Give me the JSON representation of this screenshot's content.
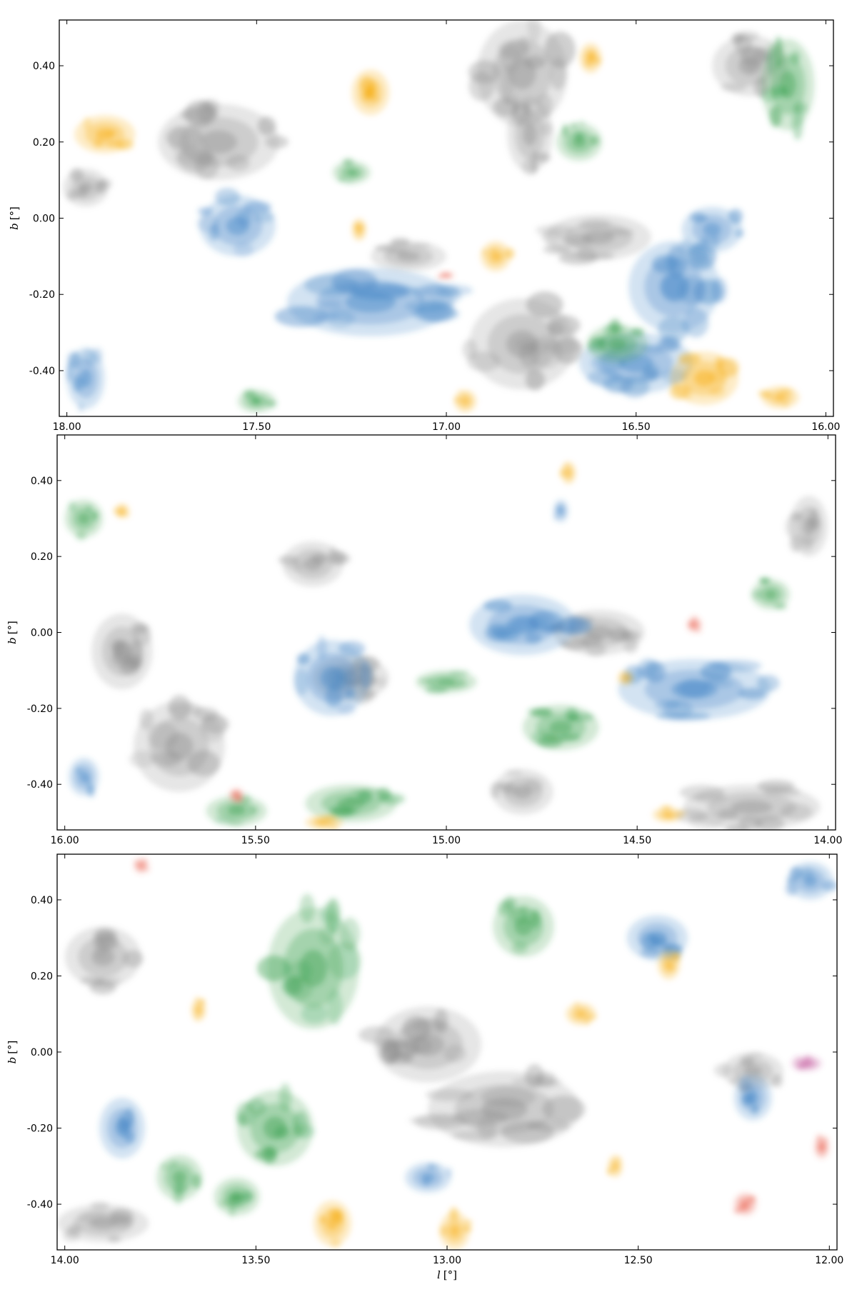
{
  "chart_data": [
    {
      "type": "heatmap",
      "panel": "top",
      "xlabel": "",
      "ylabel_var": "b",
      "ylabel_unit": "[°]",
      "xlim": [
        18.02,
        15.98
      ],
      "ylim": [
        -0.52,
        0.52
      ],
      "x_ticks": [
        18.0,
        17.5,
        17.0,
        16.5,
        16.0
      ],
      "x_tick_labels": [
        "18.00",
        "17.50",
        "17.00",
        "16.50",
        "16.00"
      ],
      "y_ticks": [
        0.4,
        0.2,
        0.0,
        -0.2,
        -0.4
      ],
      "y_tick_labels": [
        "0.40",
        "0.20",
        "0.00",
        "-0.20",
        "-0.40"
      ],
      "color_groups": [
        {
          "color": "#8c8c8c",
          "blobs": [
            [
              17.6,
              0.2,
              0.16,
              0.1
            ],
            [
              16.8,
              0.38,
              0.12,
              0.14
            ],
            [
              16.78,
              0.22,
              0.06,
              0.1
            ],
            [
              16.6,
              -0.05,
              0.14,
              0.06
            ],
            [
              16.8,
              -0.33,
              0.14,
              0.12
            ],
            [
              17.95,
              0.08,
              0.06,
              0.05
            ],
            [
              16.2,
              0.4,
              0.1,
              0.08
            ],
            [
              17.1,
              -0.1,
              0.1,
              0.04
            ]
          ]
        },
        {
          "color": "#3a7fc2",
          "blobs": [
            [
              17.2,
              -0.22,
              0.22,
              0.09
            ],
            [
              16.4,
              -0.18,
              0.12,
              0.12
            ],
            [
              16.5,
              -0.38,
              0.15,
              0.08
            ],
            [
              17.95,
              -0.42,
              0.05,
              0.08
            ],
            [
              17.55,
              -0.02,
              0.1,
              0.08
            ],
            [
              16.3,
              -0.03,
              0.08,
              0.06
            ]
          ]
        },
        {
          "color": "#2e9a45",
          "blobs": [
            [
              16.65,
              0.2,
              0.06,
              0.05
            ],
            [
              16.1,
              0.35,
              0.07,
              0.12
            ],
            [
              17.25,
              0.12,
              0.05,
              0.03
            ],
            [
              16.55,
              -0.33,
              0.08,
              0.05
            ],
            [
              17.5,
              -0.48,
              0.05,
              0.03
            ]
          ]
        },
        {
          "color": "#f5a800",
          "blobs": [
            [
              17.2,
              0.33,
              0.05,
              0.06
            ],
            [
              17.9,
              0.22,
              0.08,
              0.05
            ],
            [
              16.32,
              -0.42,
              0.09,
              0.07
            ],
            [
              16.12,
              -0.47,
              0.05,
              0.03
            ],
            [
              16.87,
              -0.1,
              0.04,
              0.04
            ],
            [
              16.95,
              -0.48,
              0.03,
              0.03
            ],
            [
              16.62,
              0.42,
              0.03,
              0.04
            ],
            [
              17.23,
              -0.03,
              0.02,
              0.03
            ]
          ]
        },
        {
          "color": "#e8523f",
          "blobs": [
            [
              17.0,
              -0.15,
              0.02,
              0.01
            ]
          ]
        }
      ]
    },
    {
      "type": "heatmap",
      "panel": "middle",
      "xlabel": "",
      "ylabel_var": "b",
      "ylabel_unit": "[°]",
      "xlim": [
        16.02,
        13.98
      ],
      "ylim": [
        -0.52,
        0.52
      ],
      "x_ticks": [
        16.0,
        15.5,
        15.0,
        14.5,
        14.0
      ],
      "x_tick_labels": [
        "16.00",
        "15.50",
        "15.00",
        "14.50",
        "14.00"
      ],
      "y_ticks": [
        0.4,
        0.2,
        0.0,
        -0.2,
        -0.4
      ],
      "y_tick_labels": [
        "0.40",
        "0.20",
        "0.00",
        "-0.20",
        "-0.40"
      ],
      "color_groups": [
        {
          "color": "#8c8c8c",
          "blobs": [
            [
              15.7,
              -0.3,
              0.12,
              0.12
            ],
            [
              15.85,
              -0.05,
              0.08,
              0.1
            ],
            [
              15.35,
              0.18,
              0.08,
              0.06
            ],
            [
              15.25,
              -0.12,
              0.1,
              0.06
            ],
            [
              14.6,
              0.0,
              0.12,
              0.06
            ],
            [
              14.2,
              -0.46,
              0.18,
              0.06
            ],
            [
              14.8,
              -0.42,
              0.08,
              0.06
            ],
            [
              14.05,
              0.28,
              0.05,
              0.08
            ]
          ]
        },
        {
          "color": "#3a7fc2",
          "blobs": [
            [
              14.8,
              0.02,
              0.14,
              0.08
            ],
            [
              14.35,
              -0.15,
              0.2,
              0.08
            ],
            [
              15.3,
              -0.12,
              0.1,
              0.1
            ],
            [
              15.95,
              -0.38,
              0.04,
              0.05
            ],
            [
              14.7,
              0.32,
              0.02,
              0.03
            ]
          ]
        },
        {
          "color": "#2e9a45",
          "blobs": [
            [
              15.25,
              -0.45,
              0.12,
              0.05
            ],
            [
              15.55,
              -0.47,
              0.08,
              0.04
            ],
            [
              14.15,
              0.1,
              0.05,
              0.04
            ],
            [
              15.0,
              -0.13,
              0.08,
              0.03
            ],
            [
              15.95,
              0.3,
              0.05,
              0.05
            ],
            [
              14.7,
              -0.25,
              0.1,
              0.06
            ]
          ]
        },
        {
          "color": "#f5a800",
          "blobs": [
            [
              15.85,
              0.32,
              0.02,
              0.02
            ],
            [
              15.32,
              -0.5,
              0.05,
              0.02
            ],
            [
              14.42,
              -0.48,
              0.04,
              0.02
            ],
            [
              14.68,
              0.42,
              0.02,
              0.03
            ],
            [
              14.53,
              -0.12,
              0.02,
              0.02
            ]
          ]
        },
        {
          "color": "#e8523f",
          "blobs": [
            [
              14.35,
              0.02,
              0.02,
              0.02
            ],
            [
              15.55,
              -0.43,
              0.02,
              0.02
            ]
          ]
        }
      ]
    },
    {
      "type": "heatmap",
      "panel": "bottom",
      "xlabel_var": "l",
      "xlabel_unit": "[°]",
      "ylabel_var": "b",
      "ylabel_unit": "[°]",
      "xlim": [
        14.02,
        11.98
      ],
      "ylim": [
        -0.52,
        0.52
      ],
      "x_ticks": [
        14.0,
        13.5,
        13.0,
        12.5,
        12.0
      ],
      "x_tick_labels": [
        "14.00",
        "13.50",
        "13.00",
        "12.50",
        "12.00"
      ],
      "y_ticks": [
        0.4,
        0.2,
        0.0,
        -0.2,
        -0.4
      ],
      "y_tick_labels": [
        "0.40",
        "0.20",
        "0.00",
        "-0.20",
        "-0.40"
      ],
      "color_groups": [
        {
          "color": "#8c8c8c",
          "blobs": [
            [
              12.85,
              -0.15,
              0.2,
              0.1
            ],
            [
              13.05,
              0.02,
              0.14,
              0.1
            ],
            [
              13.9,
              0.25,
              0.1,
              0.08
            ],
            [
              13.9,
              -0.45,
              0.12,
              0.05
            ],
            [
              12.2,
              -0.05,
              0.08,
              0.05
            ]
          ]
        },
        {
          "color": "#3a7fc2",
          "blobs": [
            [
              12.2,
              -0.12,
              0.05,
              0.06
            ],
            [
              12.45,
              0.3,
              0.08,
              0.06
            ],
            [
              13.05,
              -0.33,
              0.06,
              0.04
            ],
            [
              13.85,
              -0.2,
              0.06,
              0.08
            ],
            [
              12.05,
              0.45,
              0.06,
              0.05
            ]
          ]
        },
        {
          "color": "#2e9a45",
          "blobs": [
            [
              13.35,
              0.22,
              0.12,
              0.16
            ],
            [
              12.8,
              0.33,
              0.08,
              0.08
            ],
            [
              13.45,
              -0.2,
              0.1,
              0.1
            ],
            [
              13.7,
              -0.33,
              0.06,
              0.06
            ],
            [
              13.55,
              -0.38,
              0.06,
              0.05
            ]
          ]
        },
        {
          "color": "#f5a800",
          "blobs": [
            [
              13.3,
              -0.45,
              0.05,
              0.06
            ],
            [
              12.98,
              -0.47,
              0.04,
              0.05
            ],
            [
              12.42,
              0.23,
              0.03,
              0.04
            ],
            [
              12.65,
              0.1,
              0.04,
              0.03
            ],
            [
              13.65,
              0.11,
              0.02,
              0.03
            ],
            [
              12.56,
              -0.3,
              0.02,
              0.03
            ]
          ]
        },
        {
          "color": "#e8523f",
          "blobs": [
            [
              12.02,
              -0.25,
              0.02,
              0.03
            ],
            [
              12.22,
              -0.4,
              0.03,
              0.03
            ],
            [
              13.8,
              0.49,
              0.02,
              0.02
            ]
          ]
        },
        {
          "color": "#b8378a",
          "blobs": [
            [
              12.06,
              -0.03,
              0.04,
              0.02
            ]
          ]
        }
      ]
    }
  ]
}
